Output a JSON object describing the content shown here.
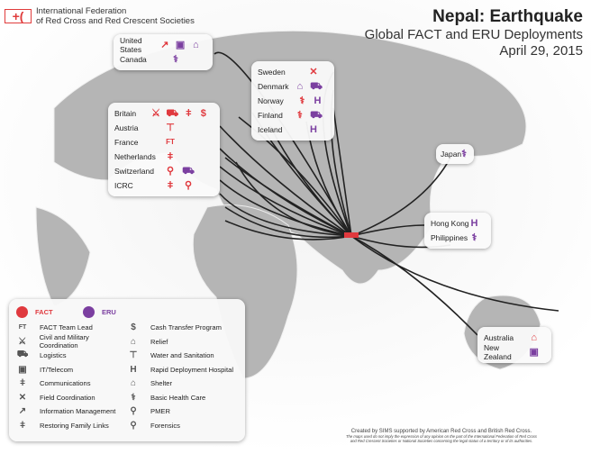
{
  "org": {
    "name_line1": "International Federation",
    "name_line2": "of Red Cross and Red Crescent Societies",
    "logo": "red-cross-red-crescent-emblem"
  },
  "header": {
    "title": "Nepal: Earthquake",
    "subtitle": "Global FACT and ERU Deployments",
    "date": "April 29, 2015"
  },
  "colors": {
    "fact": "#e0393e",
    "eru": "#7b3fa0",
    "land": "#a9a9a9",
    "background": "#ffffff"
  },
  "icons": {
    "fact_team_lead": "FT",
    "civil_military": "⚔",
    "logistics": "⛟",
    "it_telecom": "▣",
    "communications": "ǂ",
    "field_coordination": "✕",
    "information_management": "↗",
    "restoring_family_links": "ǂ",
    "cash_transfer": "$",
    "relief": "⌂",
    "water_sanitation": "⊤",
    "hospital": "H",
    "shelter": "⌂",
    "health_care": "⚕",
    "pmer": "⚲",
    "forensics": "⚲"
  },
  "legend": {
    "fact_label": "FACT",
    "eru_label": "ERU",
    "left": [
      "FACT Team Lead",
      "Civil and Military Coordination",
      "Logistics",
      "IT/Telecom",
      "Communications",
      "Field Coordination",
      "Information Management",
      "Restoring Family Links"
    ],
    "right": [
      "Cash Transfer Program",
      "Relief",
      "Water and Sanitation",
      "Rapid Deployment Hospital",
      "Shelter",
      "Basic Health Care",
      "PMER",
      "Forensics"
    ],
    "left_icons": [
      "FT",
      "⚔",
      "⛟",
      "▣",
      "ǂ",
      "✕",
      "↗",
      "ǂ"
    ],
    "right_icons": [
      "$",
      "⌂",
      "⊤",
      "H",
      "⌂",
      "⚕",
      "⚲",
      "⚲"
    ]
  },
  "deployments": {
    "americas": [
      {
        "country": "United States",
        "units": [
          [
            "f",
            "↗"
          ],
          [
            "e",
            "▣"
          ],
          [
            "e",
            "⌂"
          ]
        ]
      },
      {
        "country": "Canada",
        "units": [
          [
            "e",
            "⚕"
          ]
        ]
      }
    ],
    "nordic": [
      {
        "country": "Sweden",
        "units": [
          [
            "f",
            "✕"
          ]
        ]
      },
      {
        "country": "Denmark",
        "units": [
          [
            "e",
            "⌂"
          ],
          [
            "e",
            "⛟"
          ]
        ]
      },
      {
        "country": "Norway",
        "units": [
          [
            "f",
            "⚕"
          ],
          [
            "e",
            "H"
          ]
        ]
      },
      {
        "country": "Finland",
        "units": [
          [
            "f",
            "⚕"
          ],
          [
            "e",
            "⛟"
          ]
        ]
      },
      {
        "country": "Iceland",
        "units": [
          [
            "e",
            "H"
          ]
        ]
      }
    ],
    "europe": [
      {
        "country": "Britain",
        "units": [
          [
            "f",
            "⚔"
          ],
          [
            "f",
            "⛟"
          ],
          [
            "f",
            "ǂ"
          ],
          [
            "f",
            "$"
          ]
        ]
      },
      {
        "country": "Austria",
        "units": [
          [
            "f",
            "⊤"
          ]
        ]
      },
      {
        "country": "France",
        "units": [
          [
            "f",
            "FT"
          ]
        ]
      },
      {
        "country": "Netherlands",
        "units": [
          [
            "f",
            "ǂ"
          ]
        ]
      },
      {
        "country": "Switzerland",
        "units": [
          [
            "f",
            "⚲"
          ],
          [
            "e",
            "⛟"
          ]
        ]
      },
      {
        "country": "ICRC",
        "units": [
          [
            "f",
            "ǂ"
          ],
          [
            "f",
            "⚲"
          ]
        ]
      }
    ],
    "japan": [
      {
        "country": "Japan",
        "units": [
          [
            "e",
            "⚕"
          ]
        ]
      }
    ],
    "asia": [
      {
        "country": "Hong Kong",
        "units": [
          [
            "e",
            "H"
          ]
        ]
      },
      {
        "country": "Philippines",
        "units": [
          [
            "e",
            "⚕"
          ]
        ]
      }
    ],
    "oceania": [
      {
        "country": "Australia",
        "units": [
          [
            "f",
            "⌂"
          ]
        ]
      },
      {
        "country": "New Zealand",
        "units": [
          [
            "e",
            "▣"
          ]
        ]
      }
    ]
  },
  "footer": {
    "credit": "Created by SIMS supported by American Red Cross and British Red Cross.",
    "disclaimer_line1": "The maps used do not imply the expression of any opinion on the part of the International Federation of Red Cross",
    "disclaimer_line2": "and Red Crescent Societies or National Societies concerning the legal status of a territory or of its authorities."
  }
}
